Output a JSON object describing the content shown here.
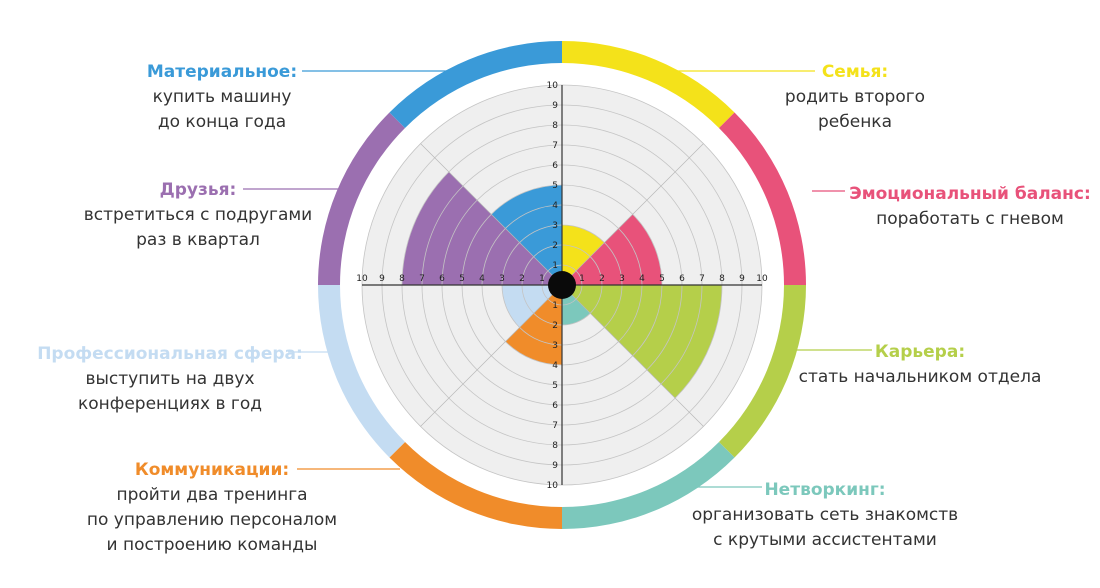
{
  "chart_data": {
    "type": "polar-area",
    "title": "",
    "scale": {
      "min": 0,
      "max": 10,
      "ticks": [
        1,
        2,
        3,
        4,
        5,
        6,
        7,
        8,
        9,
        10
      ]
    },
    "sectors": [
      {
        "name": "Семья",
        "title": "Семья:",
        "goal": [
          "родить второго",
          "ребенка"
        ],
        "value": 3,
        "color": "#f4e21a"
      },
      {
        "name": "Эмоциональный баланс",
        "title": "Эмоциональный баланс:",
        "goal": [
          "поработать с гневом"
        ],
        "value": 5,
        "color": "#e8527a"
      },
      {
        "name": "Карьера",
        "title": "Карьера:",
        "goal": [
          "стать начальником отдела"
        ],
        "value": 8,
        "color": "#b5cf4a"
      },
      {
        "name": "Нетворкинг",
        "title": "Нетворкинг:",
        "goal": [
          "организовать сеть знакомств",
          "с крутыми ассистентами"
        ],
        "value": 2,
        "color": "#7cc8bc"
      },
      {
        "name": "Коммуникации",
        "title": "Коммуникации:",
        "goal": [
          "пройти два тренинга",
          "по управлению персоналом",
          "и построению команды"
        ],
        "value": 4,
        "color": "#f08c2a"
      },
      {
        "name": "Профессиональная сфера",
        "title": "Профессиональная сфера:",
        "goal": [
          "выступить на двух",
          "конференциях в год"
        ],
        "value": 3,
        "color": "#c4dcf2"
      },
      {
        "name": "Друзья",
        "title": "Друзья:",
        "goal": [
          "встретиться с подругами",
          "раз в квартал"
        ],
        "value": 8,
        "color": "#9b6fb0"
      },
      {
        "name": "Материальное",
        "title": "Материальное:",
        "goal": [
          "купить машину",
          "до конца года"
        ],
        "value": 5,
        "color": "#3a9ad8"
      }
    ]
  }
}
